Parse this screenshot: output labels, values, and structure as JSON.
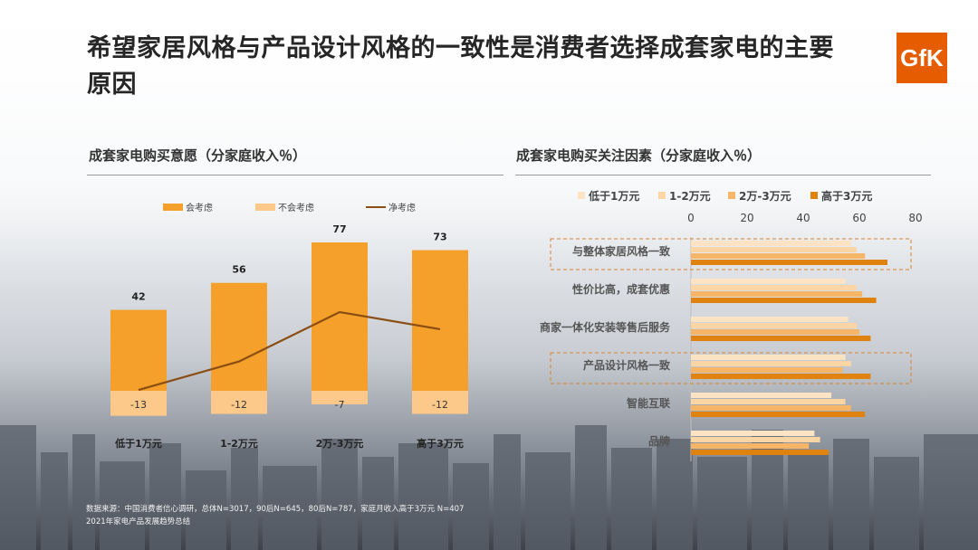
{
  "title": "希望家居风格与产品设计风格的一致性是消费者选择成套家电的主要原因",
  "logo_text": "GfK",
  "colors": {
    "accent": "#f5a02a",
    "light": "#fdc98a",
    "line": "#8a4d12",
    "series": [
      "#fbe3c3",
      "#fcd5a5",
      "#f7b568",
      "#e0820f"
    ]
  },
  "left_title": "成套家电购买意愿（分家庭收入％）",
  "right_title": "成套家电购买关注因素（分家庭收入％）",
  "source": [
    "数据来源：中国消费者信心调研，总体N=3017，90后N=645，80后N=787，家庭月收入高于3万元 N=407",
    "2021年家电产品发展趋势总结"
  ],
  "chart_data": [
    {
      "type": "bar",
      "title": "成套家电购买意愿（分家庭收入％）",
      "categories": [
        "低于1万元",
        "1-2万元",
        "2万-3万元",
        "高于3万元"
      ],
      "legend": [
        "会考虑",
        "不会考虑",
        "净考虑"
      ],
      "series": [
        {
          "name": "会考虑",
          "values": [
            42,
            56,
            77,
            73
          ],
          "labels": [
            "42",
            "56",
            "77",
            "73"
          ]
        },
        {
          "name": "不会考虑",
          "values": [
            -13,
            -12,
            -7,
            -12
          ],
          "labels": [
            "-13",
            "-12",
            "-7",
            "-12"
          ]
        },
        {
          "name": "净考虑",
          "type": "line",
          "values": [
            29,
            44,
            70,
            61
          ]
        }
      ],
      "legend_position": "top"
    },
    {
      "type": "bar",
      "orientation": "horizontal",
      "title": "成套家电购买关注因素（分家庭收入％）",
      "categories": [
        "与整体家居风格一致",
        "性价比高，成套优惠",
        "商家一体化安装等售后服务",
        "产品设计风格一致",
        "智能互联",
        "品牌"
      ],
      "highlighted": [
        "与整体家居风格一致",
        "产品设计风格一致"
      ],
      "xticks": [
        "0",
        "20",
        "40",
        "60",
        "80"
      ],
      "xlim": [
        0,
        80
      ],
      "series": [
        {
          "name": "低于1万元",
          "values": [
            57,
            55,
            56,
            55,
            50,
            44
          ]
        },
        {
          "name": "1-2万元",
          "values": [
            59,
            59,
            59,
            57,
            55,
            46
          ]
        },
        {
          "name": "2万-3万元",
          "values": [
            62,
            61,
            60,
            54,
            57,
            42
          ]
        },
        {
          "name": "高于3万元",
          "values": [
            70,
            66,
            64,
            64,
            62,
            49
          ]
        }
      ],
      "legend_position": "top"
    }
  ]
}
